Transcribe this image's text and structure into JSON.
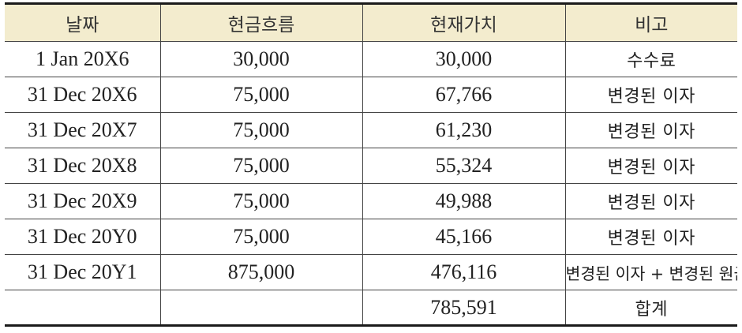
{
  "table": {
    "headers": {
      "date": "날짜",
      "cash_flow": "현금흐름",
      "present_value": "현재가치",
      "note": "비고"
    },
    "rows": [
      {
        "date": "1 Jan 20X6",
        "cash_flow": "30,000",
        "present_value": "30,000",
        "note": "수수료"
      },
      {
        "date": "31 Dec 20X6",
        "cash_flow": "75,000",
        "present_value": "67,766",
        "note": "변경된 이자"
      },
      {
        "date": "31 Dec 20X7",
        "cash_flow": "75,000",
        "present_value": "61,230",
        "note": "변경된 이자"
      },
      {
        "date": "31 Dec 20X8",
        "cash_flow": "75,000",
        "present_value": "55,324",
        "note": "변경된 이자"
      },
      {
        "date": "31 Dec 20X9",
        "cash_flow": "75,000",
        "present_value": "49,988",
        "note": "변경된 이자"
      },
      {
        "date": "31 Dec 20Y0",
        "cash_flow": "75,000",
        "present_value": "45,166",
        "note": "변경된 이자"
      },
      {
        "date": "31 Dec 20Y1",
        "cash_flow": "875,000",
        "present_value": "476,116",
        "note": "변경된 이자 + 변경된 원금"
      }
    ],
    "total": {
      "date": "",
      "cash_flow": "",
      "present_value": "785,591",
      "note": "합계"
    }
  }
}
